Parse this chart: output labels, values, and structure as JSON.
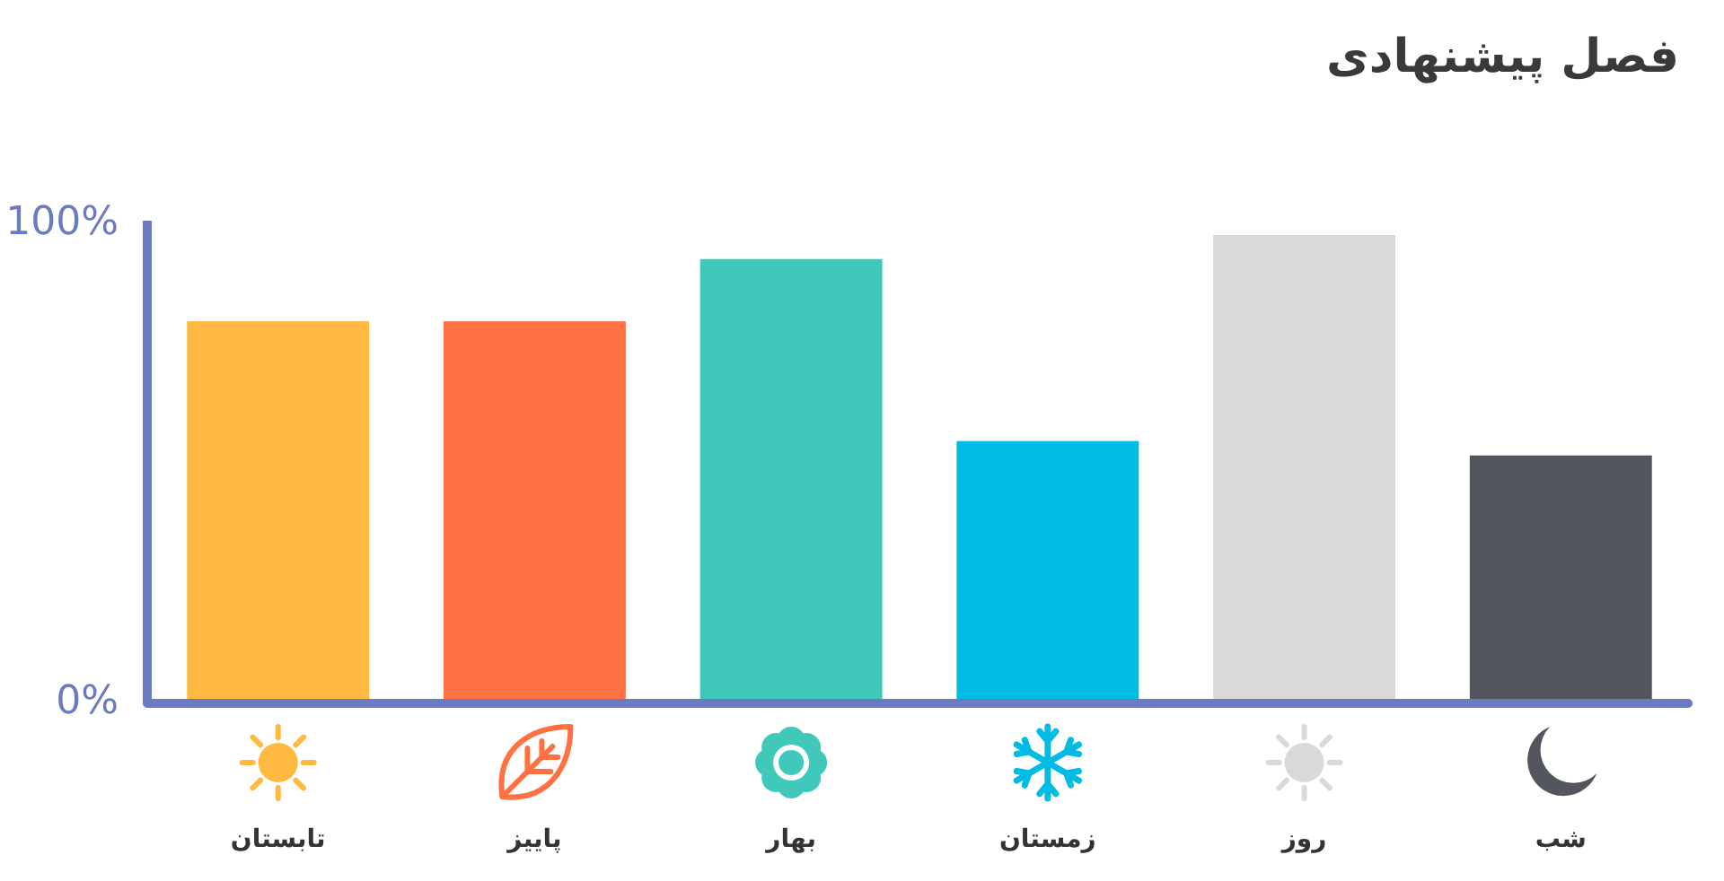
{
  "chart_data": {
    "type": "bar",
    "title": "فصل پیشنهادی",
    "categories": [
      "تابستان",
      "پاییز",
      "بهار",
      "زمستان",
      "روز",
      "شب"
    ],
    "values": [
      79,
      79,
      92,
      54,
      97,
      51
    ],
    "colors": [
      "#ffb840",
      "#ff7043",
      "#40c9bb",
      "#00bce4",
      "#d9d9d8",
      "#53565c"
    ],
    "ylim": [
      0,
      100
    ],
    "yticks": [
      {
        "value": 0,
        "label": "0%"
      },
      {
        "value": 100,
        "label": "100%"
      }
    ],
    "grid": false
  }
}
